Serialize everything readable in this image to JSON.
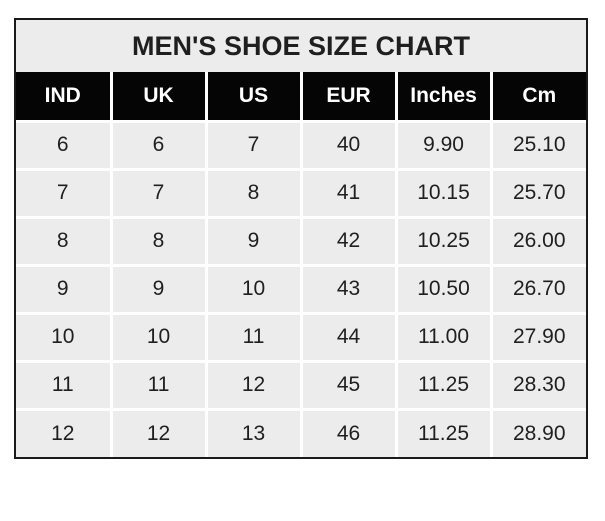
{
  "chart_data": {
    "type": "table",
    "title": "MEN'S SHOE SIZE CHART",
    "columns": [
      "IND",
      "UK",
      "US",
      "EUR",
      "Inches",
      "Cm"
    ],
    "rows": [
      [
        "6",
        "6",
        "7",
        "40",
        "9.90",
        "25.10"
      ],
      [
        "7",
        "7",
        "8",
        "41",
        "10.15",
        "25.70"
      ],
      [
        "8",
        "8",
        "9",
        "42",
        "10.25",
        "26.00"
      ],
      [
        "9",
        "9",
        "10",
        "43",
        "10.50",
        "26.70"
      ],
      [
        "10",
        "10",
        "11",
        "44",
        "11.00",
        "27.90"
      ],
      [
        "11",
        "11",
        "12",
        "45",
        "11.25",
        "28.30"
      ],
      [
        "12",
        "12",
        "13",
        "46",
        "11.25",
        "28.90"
      ]
    ],
    "layout": {
      "legend": "none",
      "grid": "white gridlines between gray cells",
      "header_style": "black background, white bold text"
    }
  },
  "colors": {
    "header_bg": "#050505",
    "header_text": "#ffffff",
    "cell_bg": "#ececec",
    "text": "#1f1f1f",
    "gridline": "#ffffff",
    "outer_border": "#1a1a1a",
    "page_bg": "#ffffff"
  }
}
